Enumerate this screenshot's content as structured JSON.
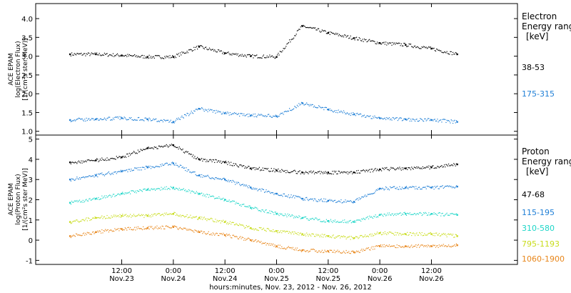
{
  "chart_data": [
    {
      "type": "scatter",
      "ylabel_lines": [
        "ACE EPAM",
        "log(Electron Flux)",
        "[1/(cm²s ster MeV)]"
      ],
      "ylim": [
        0.9,
        4.4
      ],
      "yticks": [
        1.0,
        1.5,
        2.0,
        2.5,
        3.0,
        3.5,
        4.0
      ],
      "ytick_labels": [
        "1.0",
        "1.5",
        "2.0",
        "2.5",
        "3.0",
        "3.5",
        "4.0"
      ],
      "legend_title_lines": [
        "Electron",
        "Energy ranges",
        "[keV]"
      ],
      "x": [
        0,
        6,
        12,
        18,
        24,
        30,
        36,
        42,
        48,
        54,
        60,
        66,
        72,
        78,
        84,
        90
      ],
      "series": [
        {
          "name": "38-53",
          "color": "#000000",
          "values": [
            3.05,
            3.05,
            3.02,
            2.98,
            2.98,
            3.25,
            3.08,
            3.0,
            2.98,
            3.8,
            3.62,
            3.48,
            3.35,
            3.3,
            3.2,
            3.05
          ]
        },
        {
          "name": "175-315",
          "color": "#1f7fd6",
          "values": [
            1.3,
            1.32,
            1.35,
            1.32,
            1.25,
            1.6,
            1.48,
            1.42,
            1.4,
            1.75,
            1.58,
            1.45,
            1.35,
            1.32,
            1.3,
            1.25
          ]
        }
      ]
    },
    {
      "type": "scatter",
      "ylabel_lines": [
        "ACE EPAM",
        "log(Proton Flux)",
        "[1/(cm²s ster MeV)]"
      ],
      "ylim": [
        -1.2,
        5.2
      ],
      "yticks": [
        -1,
        0,
        1,
        2,
        3,
        4,
        5
      ],
      "ytick_labels": [
        "-1",
        "0",
        "1",
        "2",
        "3",
        "4",
        "5"
      ],
      "legend_title_lines": [
        "Proton",
        "Energy ranges",
        "[keV]"
      ],
      "x": [
        0,
        6,
        12,
        18,
        24,
        30,
        36,
        42,
        48,
        54,
        60,
        66,
        72,
        78,
        84,
        90
      ],
      "series": [
        {
          "name": "47-68",
          "color": "#000000",
          "values": [
            3.85,
            3.95,
            4.1,
            4.55,
            4.7,
            4.0,
            3.85,
            3.55,
            3.45,
            3.35,
            3.35,
            3.35,
            3.5,
            3.55,
            3.6,
            3.75
          ]
        },
        {
          "name": "115-195",
          "color": "#1f7fd6",
          "values": [
            3.0,
            3.2,
            3.4,
            3.6,
            3.8,
            3.2,
            3.0,
            2.6,
            2.3,
            2.05,
            1.95,
            1.9,
            2.55,
            2.6,
            2.6,
            2.65
          ]
        },
        {
          "name": "310-580",
          "color": "#1fd6c8",
          "values": [
            1.85,
            2.05,
            2.3,
            2.5,
            2.6,
            2.3,
            2.0,
            1.6,
            1.3,
            1.1,
            0.95,
            0.9,
            1.25,
            1.3,
            1.3,
            1.25
          ]
        },
        {
          "name": "795-1193",
          "color": "#c8dc1a",
          "values": [
            0.9,
            1.1,
            1.2,
            1.2,
            1.3,
            1.1,
            0.9,
            0.6,
            0.45,
            0.3,
            0.2,
            0.1,
            0.35,
            0.3,
            0.3,
            0.2
          ]
        },
        {
          "name": "1060-1900",
          "color": "#e8861a",
          "values": [
            0.2,
            0.4,
            0.55,
            0.6,
            0.65,
            0.4,
            0.25,
            0.0,
            -0.3,
            -0.5,
            -0.55,
            -0.6,
            -0.3,
            -0.3,
            -0.3,
            -0.25
          ]
        }
      ]
    }
  ],
  "x_axis": {
    "tick_hours": [
      12,
      24,
      36,
      48,
      60,
      72,
      84
    ],
    "tick_top": [
      "12:00",
      "0:00",
      "12:00",
      "0:00",
      "12:00",
      "0:00",
      "12:00"
    ],
    "tick_bottom": [
      "Nov.23",
      "Nov.24",
      "Nov.24",
      "Nov.25",
      "Nov.25",
      "Nov.26",
      "Nov.26"
    ],
    "xlabel": "hours:minutes, Nov. 23, 2012 - Nov. 26, 2012"
  }
}
